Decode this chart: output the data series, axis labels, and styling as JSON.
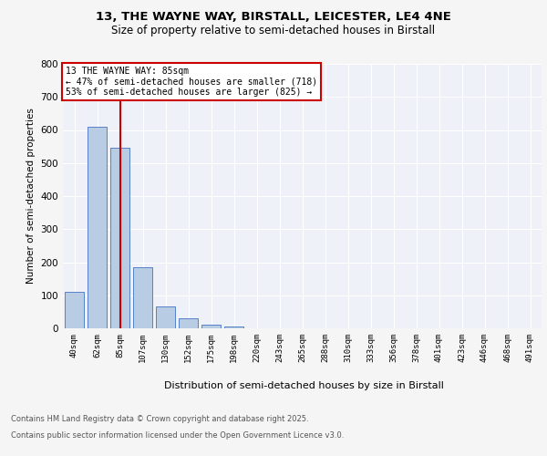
{
  "title_line1": "13, THE WAYNE WAY, BIRSTALL, LEICESTER, LE4 4NE",
  "title_line2": "Size of property relative to semi-detached houses in Birstall",
  "xlabel": "Distribution of semi-detached houses by size in Birstall",
  "ylabel": "Number of semi-detached properties",
  "categories": [
    "40sqm",
    "62sqm",
    "85sqm",
    "107sqm",
    "130sqm",
    "152sqm",
    "175sqm",
    "198sqm",
    "220sqm",
    "243sqm",
    "265sqm",
    "288sqm",
    "310sqm",
    "333sqm",
    "356sqm",
    "378sqm",
    "401sqm",
    "423sqm",
    "446sqm",
    "468sqm",
    "491sqm"
  ],
  "values": [
    110,
    610,
    545,
    185,
    65,
    30,
    10,
    5,
    1,
    0,
    0,
    0,
    0,
    0,
    0,
    0,
    0,
    0,
    0,
    0,
    0
  ],
  "bar_color": "#b8cce4",
  "bar_edge_color": "#4472c4",
  "vline_index": 2,
  "vline_color": "#cc0000",
  "annotation_title": "13 THE WAYNE WAY: 85sqm",
  "annotation_line1": "← 47% of semi-detached houses are smaller (718)",
  "annotation_line2": "53% of semi-detached houses are larger (825) →",
  "annotation_box_color": "#cc0000",
  "ylim": [
    0,
    800
  ],
  "yticks": [
    0,
    100,
    200,
    300,
    400,
    500,
    600,
    700,
    800
  ],
  "footer_line1": "Contains HM Land Registry data © Crown copyright and database right 2025.",
  "footer_line2": "Contains public sector information licensed under the Open Government Licence v3.0.",
  "bg_color": "#eef2f8",
  "grid_color": "#ffffff",
  "fig_bg_color": "#f5f5f5"
}
